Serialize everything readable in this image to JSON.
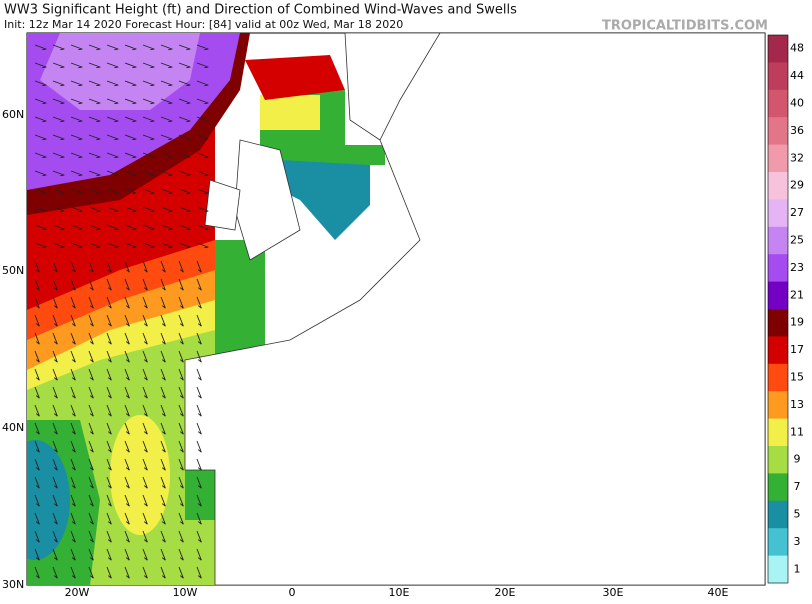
{
  "header": {
    "title": "WW3 Significant Height (ft) and Direction of Combined Wind-Waves and Swells",
    "subtitle": "Init: 12z Mar 14 2020   Forecast Hour: [84]   valid at 00z Wed, Mar 18 2020",
    "watermark": "TROPICALTIDBITS.COM"
  },
  "map": {
    "lat_labels": [
      "60N",
      "50N",
      "40N",
      "30N"
    ],
    "lon_labels": [
      "20W",
      "10W",
      "0",
      "10E",
      "20E",
      "30E",
      "40E"
    ]
  },
  "colorbar": {
    "levels": [
      {
        "value": 48,
        "color": "#a3284c"
      },
      {
        "value": 44,
        "color": "#be3c5c"
      },
      {
        "value": 40,
        "color": "#d2566e"
      },
      {
        "value": 36,
        "color": "#e27688"
      },
      {
        "value": 32,
        "color": "#f09aac"
      },
      {
        "value": 29,
        "color": "#f6c2dc"
      },
      {
        "value": 27,
        "color": "#e4b4f4"
      },
      {
        "value": 25,
        "color": "#c484f2"
      },
      {
        "value": 23,
        "color": "#a44cf0"
      },
      {
        "value": 21,
        "color": "#7400c4"
      },
      {
        "value": 19,
        "color": "#7e0000"
      },
      {
        "value": 17,
        "color": "#d40000"
      },
      {
        "value": 15,
        "color": "#ff4a10"
      },
      {
        "value": 13,
        "color": "#ff9a20"
      },
      {
        "value": 11,
        "color": "#f2f048"
      },
      {
        "value": 9,
        "color": "#a6dc44"
      },
      {
        "value": 7,
        "color": "#34b034"
      },
      {
        "value": 5,
        "color": "#1a8ea2"
      },
      {
        "value": 3,
        "color": "#44c2d2"
      },
      {
        "value": 1,
        "color": "#a8f4f4"
      }
    ]
  }
}
